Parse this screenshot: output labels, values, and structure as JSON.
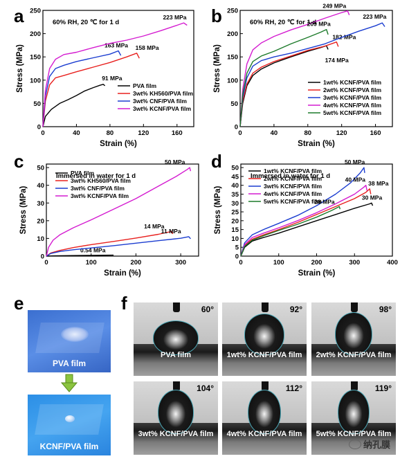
{
  "panels": {
    "a": "a",
    "b": "b",
    "c": "c",
    "d": "d",
    "e": "e",
    "f": "f"
  },
  "chart_data": [
    {
      "id": "a",
      "type": "line",
      "condition": "60% RH, 20 ℃ for 1 d",
      "xlabel": "Strain (%)",
      "ylabel": "Stress (MPa)",
      "xlim": [
        0,
        180
      ],
      "ylim": [
        0,
        250
      ],
      "xticks": [
        0,
        40,
        80,
        120,
        160
      ],
      "yticks": [
        0,
        50,
        100,
        150,
        200,
        250
      ],
      "series": [
        {
          "name": "PVA film",
          "color": "#000000",
          "peak_label": "91 MPa",
          "points": [
            [
              0,
              0
            ],
            [
              3,
              22
            ],
            [
              10,
              37
            ],
            [
              20,
              50
            ],
            [
              30,
              58
            ],
            [
              40,
              67
            ],
            [
              50,
              77
            ],
            [
              60,
              84
            ],
            [
              68,
              89
            ],
            [
              72,
              91
            ],
            [
              74,
              88
            ]
          ]
        },
        {
          "name": "3wt% KH560/PVA film",
          "color": "#e8201e",
          "peak_label": "158 MPa",
          "points": [
            [
              0,
              0
            ],
            [
              3,
              55
            ],
            [
              8,
              90
            ],
            [
              15,
              105
            ],
            [
              25,
              110
            ],
            [
              40,
              118
            ],
            [
              60,
              128
            ],
            [
              80,
              138
            ],
            [
              100,
              150
            ],
            [
              112,
              158
            ],
            [
              115,
              147
            ]
          ]
        },
        {
          "name": "3wt% CNF/PVA film",
          "color": "#1a3cd0",
          "peak_label": "163 MPa",
          "points": [
            [
              0,
              0
            ],
            [
              3,
              65
            ],
            [
              8,
              108
            ],
            [
              15,
              125
            ],
            [
              25,
              132
            ],
            [
              40,
              140
            ],
            [
              60,
              148
            ],
            [
              80,
              156
            ],
            [
              90,
              163
            ],
            [
              93,
              153
            ]
          ]
        },
        {
          "name": "3wt% KCNF/PVA film",
          "color": "#d41bd0",
          "peak_label": "223 MPa",
          "points": [
            [
              0,
              0
            ],
            [
              3,
              78
            ],
            [
              8,
              125
            ],
            [
              15,
              145
            ],
            [
              25,
              155
            ],
            [
              40,
              160
            ],
            [
              60,
              170
            ],
            [
              80,
              179
            ],
            [
              100,
              186
            ],
            [
              120,
              195
            ],
            [
              140,
              206
            ],
            [
              160,
              218
            ],
            [
              168,
              223
            ],
            [
              172,
              218
            ]
          ]
        }
      ]
    },
    {
      "id": "b",
      "type": "line",
      "condition": "60% RH, 20 ℃ for 1 d",
      "xlabel": "Strain (%)",
      "ylabel": "Stress (MPa)",
      "xlim": [
        0,
        180
      ],
      "ylim": [
        0,
        250
      ],
      "xticks": [
        0,
        40,
        80,
        120,
        160
      ],
      "yticks": [
        0,
        50,
        100,
        150,
        200,
        250
      ],
      "series": [
        {
          "name": "1wt% KCNF/PVA film",
          "color": "#000000",
          "peak_label": "174 MPa",
          "points": [
            [
              0,
              0
            ],
            [
              3,
              50
            ],
            [
              8,
              88
            ],
            [
              15,
              110
            ],
            [
              25,
              124
            ],
            [
              40,
              137
            ],
            [
              60,
              150
            ],
            [
              80,
              162
            ],
            [
              95,
              170
            ],
            [
              102,
              174
            ],
            [
              104,
              166
            ]
          ]
        },
        {
          "name": "2wt% KCNF/PVA film",
          "color": "#e8201e",
          "peak_label": "182 MPa",
          "points": [
            [
              0,
              0
            ],
            [
              3,
              55
            ],
            [
              8,
              92
            ],
            [
              15,
              115
            ],
            [
              25,
              128
            ],
            [
              40,
              140
            ],
            [
              60,
              152
            ],
            [
              80,
              164
            ],
            [
              100,
              173
            ],
            [
              114,
              182
            ],
            [
              116,
              172
            ]
          ]
        },
        {
          "name": "3wt% KCNF/PVA film",
          "color": "#1a3cd0",
          "peak_label": "223 MPa",
          "points": [
            [
              0,
              0
            ],
            [
              3,
              62
            ],
            [
              8,
              105
            ],
            [
              15,
              130
            ],
            [
              25,
              142
            ],
            [
              40,
              150
            ],
            [
              60,
              158
            ],
            [
              80,
              168
            ],
            [
              100,
              178
            ],
            [
              120,
              192
            ],
            [
              140,
              205
            ],
            [
              160,
              217
            ],
            [
              168,
              223
            ],
            [
              171,
              215
            ]
          ]
        },
        {
          "name": "4wt% KCNF/PVA film",
          "color": "#d41bd0",
          "peak_label": "249 MPa",
          "points": [
            [
              0,
              0
            ],
            [
              3,
              80
            ],
            [
              8,
              135
            ],
            [
              15,
              165
            ],
            [
              25,
              180
            ],
            [
              40,
              194
            ],
            [
              60,
              208
            ],
            [
              80,
              220
            ],
            [
              100,
              233
            ],
            [
              118,
              244
            ],
            [
              127,
              249
            ],
            [
              129,
              240
            ]
          ]
        },
        {
          "name": "5wt% KCNF/PVA film",
          "color": "#1c7a2a",
          "peak_label": "209 MPa",
          "points": [
            [
              0,
              0
            ],
            [
              3,
              70
            ],
            [
              8,
              115
            ],
            [
              15,
              140
            ],
            [
              25,
              152
            ],
            [
              40,
              162
            ],
            [
              60,
              178
            ],
            [
              80,
              192
            ],
            [
              95,
              203
            ],
            [
              102,
              209
            ],
            [
              104,
              198
            ]
          ]
        }
      ]
    },
    {
      "id": "c",
      "type": "line",
      "condition": "Immersed in water for 1 d",
      "xlabel": "Strain (%)",
      "ylabel": "Stress (MPa)",
      "xlim": [
        0,
        340
      ],
      "ylim": [
        0,
        52
      ],
      "xticks": [
        0,
        100,
        200,
        300
      ],
      "yticks": [
        0,
        10,
        20,
        30,
        40,
        50
      ],
      "series": [
        {
          "name": "PVA film",
          "color": "#000000",
          "peak_label": "0.54 MPa",
          "points": [
            [
              0,
              0
            ],
            [
              20,
              0.15
            ],
            [
              60,
              0.3
            ],
            [
              100,
              0.42
            ],
            [
              130,
              0.5
            ],
            [
              150,
              0.54
            ]
          ]
        },
        {
          "name": "3wt% KH560/PVA film",
          "color": "#e8201e",
          "peak_label": "14 MPa",
          "points": [
            [
              0,
              0
            ],
            [
              10,
              1.8
            ],
            [
              30,
              3.2
            ],
            [
              60,
              4.8
            ],
            [
              100,
              6.5
            ],
            [
              150,
              8.3
            ],
            [
              200,
              10.2
            ],
            [
              250,
              12.3
            ],
            [
              275,
              13.7
            ],
            [
              280,
              14
            ],
            [
              282,
              12.5
            ]
          ]
        },
        {
          "name": "3wt% CNF/PVA film",
          "color": "#1a3cd0",
          "peak_label": "11 MPa",
          "points": [
            [
              0,
              0
            ],
            [
              10,
              1.5
            ],
            [
              30,
              2.6
            ],
            [
              60,
              3.6
            ],
            [
              100,
              4.6
            ],
            [
              150,
              5.9
            ],
            [
              200,
              7.3
            ],
            [
              250,
              8.7
            ],
            [
              300,
              10.1
            ],
            [
              318,
              11
            ],
            [
              322,
              9.8
            ]
          ]
        },
        {
          "name": "3wt% KCNF/PVA film",
          "color": "#d41bd0",
          "peak_label": "50 MPa",
          "points": [
            [
              0,
              0
            ],
            [
              5,
              5
            ],
            [
              15,
              9
            ],
            [
              30,
              12
            ],
            [
              60,
              16
            ],
            [
              100,
              20.5
            ],
            [
              150,
              26.5
            ],
            [
              200,
              32.5
            ],
            [
              250,
              39.5
            ],
            [
              290,
              45
            ],
            [
              315,
              49
            ],
            [
              320,
              50
            ],
            [
              322,
              48
            ]
          ]
        }
      ]
    },
    {
      "id": "d",
      "type": "line",
      "condition": "Immersed in water for 1 d",
      "xlabel": "Strain (%)",
      "ylabel": "Stress (MPa)",
      "xlim": [
        0,
        400
      ],
      "ylim": [
        0,
        52
      ],
      "xticks": [
        0,
        100,
        200,
        300,
        400
      ],
      "yticks": [
        0,
        5,
        10,
        15,
        20,
        25,
        30,
        35,
        40,
        45,
        50
      ],
      "series": [
        {
          "name": "1wt% KCNF/PVA film",
          "color": "#000000",
          "peak_label": "30 MPa",
          "points": [
            [
              0,
              0
            ],
            [
              10,
              5
            ],
            [
              30,
              8.5
            ],
            [
              60,
              10.5
            ],
            [
              100,
              13
            ],
            [
              150,
              16.5
            ],
            [
              200,
              20
            ],
            [
              250,
              23.5
            ],
            [
              300,
              27
            ],
            [
              340,
              29.5
            ],
            [
              345,
              30
            ],
            [
              348,
              28.5
            ]
          ]
        },
        {
          "name": "2wt% KCNF/PVA film",
          "color": "#e8201e",
          "peak_label": "38 MPa",
          "points": [
            [
              0,
              0
            ],
            [
              10,
              6
            ],
            [
              30,
              9.5
            ],
            [
              60,
              12
            ],
            [
              100,
              15
            ],
            [
              150,
              19
            ],
            [
              200,
              23.5
            ],
            [
              250,
              28
            ],
            [
              300,
              32.5
            ],
            [
              330,
              36
            ],
            [
              340,
              38
            ],
            [
              343,
              35
            ]
          ]
        },
        {
          "name": "3wt% KCNF/PVA film",
          "color": "#1a3cd0",
          "peak_label": "50 MPa",
          "points": [
            [
              0,
              0
            ],
            [
              10,
              7.5
            ],
            [
              30,
              12
            ],
            [
              60,
              15
            ],
            [
              100,
              18.5
            ],
            [
              150,
              23
            ],
            [
              200,
              28.5
            ],
            [
              250,
              35
            ],
            [
              290,
              41.5
            ],
            [
              315,
              47
            ],
            [
              325,
              50
            ],
            [
              327,
              47
            ]
          ]
        },
        {
          "name": "4wt% KCNF/PVA film",
          "color": "#d41bd0",
          "peak_label": "40 MPa",
          "points": [
            [
              0,
              0
            ],
            [
              10,
              6.5
            ],
            [
              30,
              10.5
            ],
            [
              60,
              13
            ],
            [
              100,
              16
            ],
            [
              150,
              20
            ],
            [
              200,
              24.5
            ],
            [
              250,
              29.5
            ],
            [
              300,
              35
            ],
            [
              325,
              39
            ],
            [
              330,
              40
            ],
            [
              333,
              37
            ]
          ]
        },
        {
          "name": "5wt% KCNF/PVA film",
          "color": "#1c7a2a",
          "peak_label": "28 MPa",
          "points": [
            [
              0,
              0
            ],
            [
              10,
              5.5
            ],
            [
              30,
              9
            ],
            [
              60,
              11.5
            ],
            [
              100,
              14.5
            ],
            [
              150,
              18
            ],
            [
              200,
              22
            ],
            [
              240,
              25.8
            ],
            [
              260,
              28
            ],
            [
              262,
              26.5
            ]
          ]
        }
      ]
    }
  ],
  "panel_e": {
    "top_caption": "PVA film",
    "bottom_caption": "KCNF/PVA film"
  },
  "panel_f": {
    "cells": [
      {
        "angle": "60°",
        "caption": "PVA film"
      },
      {
        "angle": "92°",
        "caption": "1wt%  KCNF/PVA film"
      },
      {
        "angle": "98°",
        "caption": "2wt%  KCNF/PVA film"
      },
      {
        "angle": "104°",
        "caption": "3wt%  KCNF/PVA film"
      },
      {
        "angle": "112°",
        "caption": "4wt%  KCNF/PVA film"
      },
      {
        "angle": "119°",
        "caption": "5wt%  KCNF/PVA film"
      }
    ]
  },
  "watermark": "纳孔膜"
}
